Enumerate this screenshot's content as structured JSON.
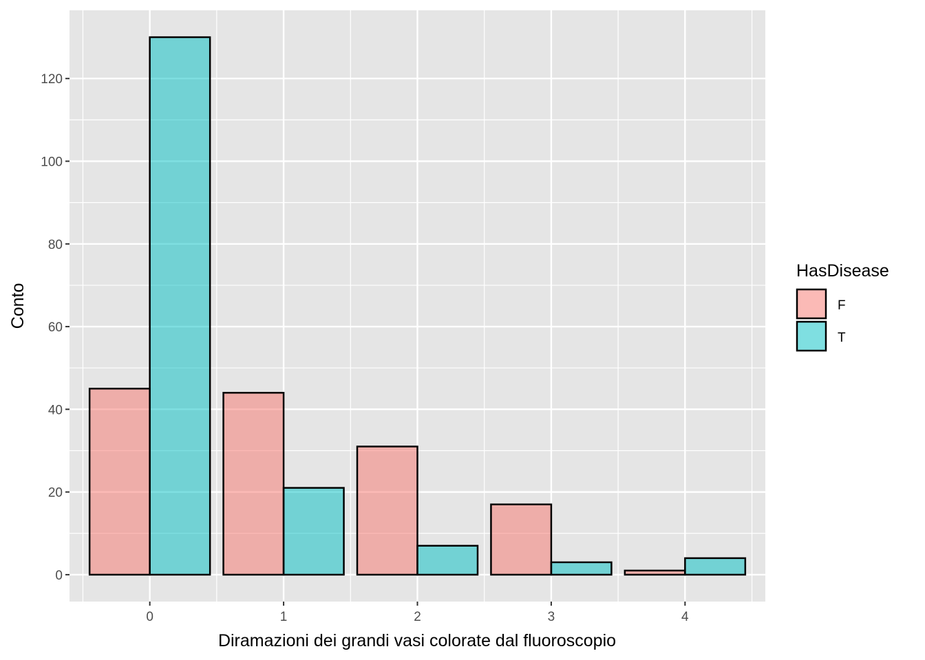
{
  "chart_data": {
    "type": "bar",
    "categories": [
      "0",
      "1",
      "2",
      "3",
      "4"
    ],
    "series": [
      {
        "name": "F",
        "values": [
          45,
          44,
          31,
          17,
          1
        ],
        "color": "#F8766D"
      },
      {
        "name": "T",
        "values": [
          130,
          21,
          7,
          3,
          4
        ],
        "color": "#00BFC4"
      }
    ],
    "xlabel": "Diramazioni dei grandi vasi colorate dal fluoroscopio",
    "ylabel": "Conto",
    "ylim": [
      -6.5,
      136.5
    ],
    "yticks": [
      0,
      20,
      40,
      60,
      80,
      100,
      120
    ],
    "ytick_labels": [
      "0",
      "20",
      "40",
      "60",
      "80",
      "100",
      "120"
    ],
    "grid": true,
    "legend": {
      "title": "HasDisease",
      "position": "right",
      "entries": [
        "F",
        "T"
      ]
    },
    "colors": {
      "panel": "#E5E5E5",
      "grid": "#FFFFFF",
      "bar_outline": "#000000",
      "tick_text": "#4D4D4D"
    },
    "bar_alpha": 0.5
  }
}
